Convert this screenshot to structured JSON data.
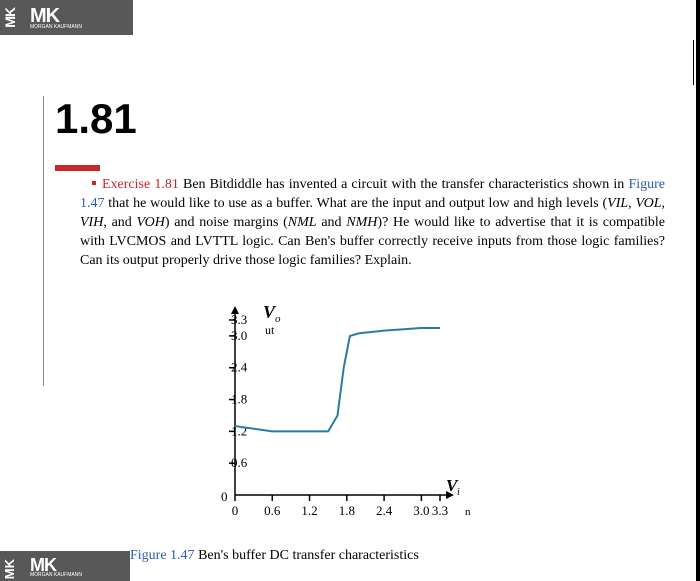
{
  "logo": {
    "text": "MK",
    "subtext": "MORGAN KAUFMANN"
  },
  "section": {
    "number": "1.81"
  },
  "exercise": {
    "label": "Exercise 1.81",
    "text_before_figref": " Ben Bitdiddle has invented a circuit with the transfer  characteristics  shown in ",
    "figref": "Figure 1.47",
    "text_after": " that he would like to use as a buffer. What are the  input and output low and high levels (",
    "vil": "VIL",
    "c1": ", ",
    "vol": "VOL",
    "c2": ",  ",
    "vih": "VIH",
    "c3": ",  and ",
    "voh": "VOH",
    "text_mid": ") and noise margins  (",
    "nml": "NML",
    "and": "  and ",
    "nmh": "NMH",
    "text_end": ")? He would like to advertise that it is compatible with LVCMOS  and  LVTTL logic. Can Ben's buffer correctly receive inputs from those logic families?  Can its output properly drive those logic families? Explain."
  },
  "chart": {
    "type": "line",
    "y_axis_label": "V",
    "y_axis_sub": "o",
    "y_axis_sub2": "ut",
    "x_axis_label": "V",
    "x_axis_sub": "i",
    "x_axis_sub2": "n",
    "origin_label": "0",
    "y_ticks": [
      "0.6",
      "1.2",
      "1.8",
      "2.4",
      "3.0",
      "3.3"
    ],
    "x_ticks": [
      "0",
      "0.6",
      "1.2",
      "1.8",
      "2.4",
      "3.0",
      "3.3"
    ],
    "line_color": "#2a7aa8",
    "axis_color": "#000000",
    "line_width": 2,
    "curve_points": [
      [
        0,
        1.3
      ],
      [
        0.6,
        1.2
      ],
      [
        1.2,
        1.2
      ],
      [
        1.5,
        1.2
      ],
      [
        1.65,
        1.5
      ],
      [
        1.75,
        2.4
      ],
      [
        1.85,
        3.0
      ],
      [
        2.0,
        3.05
      ],
      [
        2.4,
        3.1
      ],
      [
        3.0,
        3.15
      ],
      [
        3.3,
        3.15
      ]
    ],
    "xlim": [
      0,
      3.3
    ],
    "ylim": [
      0,
      3.3
    ]
  },
  "caption": {
    "label": "Figure 1.47",
    "text": " Ben's buffer DC transfer characteristics"
  }
}
